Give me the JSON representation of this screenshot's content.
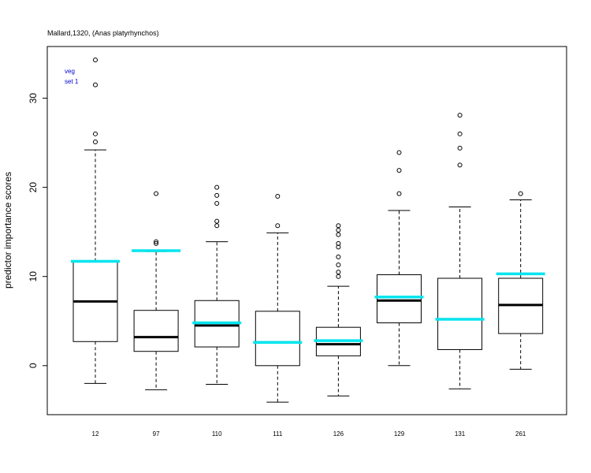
{
  "chart_data": {
    "type": "boxplot",
    "title": "Mallard,1320, (Anas platyrhynchos)",
    "ylabel": "predictor importance scores",
    "xlabel": "",
    "legend": {
      "lines": [
        "veg",
        "set 1"
      ],
      "color": "#0000cc",
      "placement": "top-left"
    },
    "ylim": [
      -5.5,
      35.8
    ],
    "yticks": [
      "0",
      "10",
      "20",
      "30"
    ],
    "ytick_values": [
      0,
      10,
      20,
      30
    ],
    "reference_color": "#00e5ee",
    "categories": [
      "12",
      "97",
      "110",
      "111",
      "126",
      "129",
      "131",
      "261"
    ],
    "boxes": [
      {
        "label": "12",
        "whisker_low": -2.0,
        "q1": 2.7,
        "median": 7.2,
        "q3": 11.7,
        "whisker_high": 24.2,
        "outliers": [
          25.1,
          26.0,
          31.5,
          34.3
        ],
        "reference": 11.7
      },
      {
        "label": "97",
        "whisker_low": -2.7,
        "q1": 1.6,
        "median": 3.2,
        "q3": 6.2,
        "whisker_high": 12.8,
        "outliers": [
          13.7,
          13.9,
          19.3
        ],
        "reference": 12.9
      },
      {
        "label": "110",
        "whisker_low": -2.1,
        "q1": 2.1,
        "median": 4.5,
        "q3": 7.3,
        "whisker_high": 13.9,
        "outliers": [
          15.7,
          16.2,
          18.2,
          19.1,
          20.0
        ],
        "reference": 4.8
      },
      {
        "label": "111",
        "whisker_low": -4.1,
        "q1": 0.0,
        "median": 2.6,
        "q3": 6.1,
        "whisker_high": 14.9,
        "outliers": [
          15.7,
          19.0
        ],
        "reference": 2.6
      },
      {
        "label": "126",
        "whisker_low": -3.4,
        "q1": 1.1,
        "median": 2.4,
        "q3": 4.3,
        "whisker_high": 8.9,
        "outliers": [
          10.0,
          10.5,
          11.3,
          12.2,
          13.3,
          13.7,
          14.7,
          15.2,
          15.7
        ],
        "reference": 2.8
      },
      {
        "label": "129",
        "whisker_low": 0.0,
        "q1": 4.8,
        "median": 7.3,
        "q3": 10.2,
        "whisker_high": 17.4,
        "outliers": [
          19.3,
          21.9,
          23.9
        ],
        "reference": 7.7
      },
      {
        "label": "131",
        "whisker_low": -2.6,
        "q1": 1.8,
        "median": 5.2,
        "q3": 9.8,
        "whisker_high": 17.8,
        "outliers": [
          22.5,
          24.4,
          26.0,
          28.1
        ],
        "reference": 5.2
      },
      {
        "label": "261",
        "whisker_low": -0.4,
        "q1": 3.6,
        "median": 6.8,
        "q3": 9.8,
        "whisker_high": 18.6,
        "outliers": [
          19.3
        ],
        "reference": 10.3
      }
    ]
  }
}
